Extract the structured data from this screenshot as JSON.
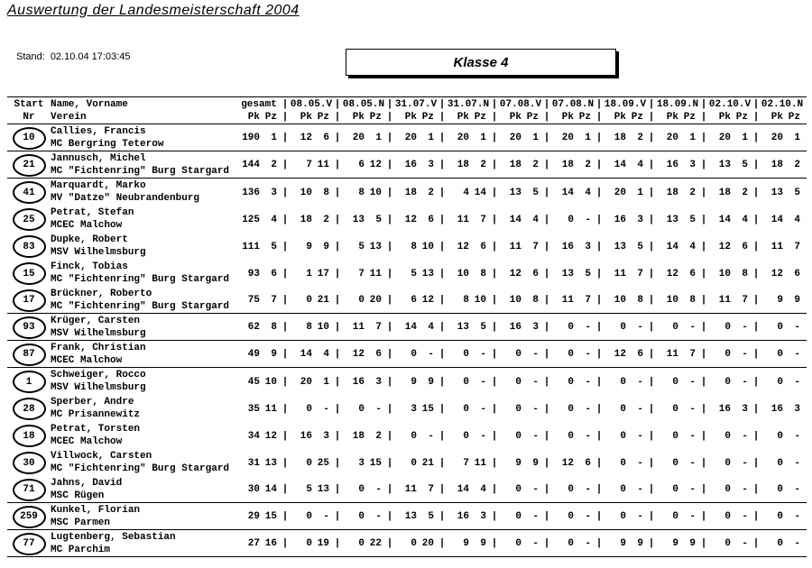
{
  "page": {
    "title": "Auswertung der Landesmeisterschaft 2004",
    "stand_label": "Stand:",
    "stand_value": "02.10.04 17:03:45",
    "klasse": "Klasse 4"
  },
  "table": {
    "divider": "|",
    "header": {
      "col_start_line1": "Start",
      "col_start_line2": "Nr",
      "col_name_line1": "Name, Vorname",
      "col_name_line2": "Verein",
      "gesamt_label": "gesamt",
      "pk_label": "Pk",
      "pz_label": "Pz",
      "dates": [
        "08.05.V",
        "08.05.N",
        "31.07.V",
        "31.07.N",
        "07.08.V",
        "07.08.N",
        "18.09.V",
        "18.09.N",
        "02.10.V",
        "02.10.N"
      ]
    },
    "rows": [
      {
        "start_nr": "10",
        "name": "Callies, Francis",
        "verein": "MC Bergring Teterow",
        "gesamt": [
          "190",
          "1"
        ],
        "results": [
          [
            "12",
            "6"
          ],
          [
            "20",
            "1"
          ],
          [
            "20",
            "1"
          ],
          [
            "20",
            "1"
          ],
          [
            "20",
            "1"
          ],
          [
            "20",
            "1"
          ],
          [
            "18",
            "2"
          ],
          [
            "20",
            "1"
          ],
          [
            "20",
            "1"
          ],
          [
            "20",
            "1"
          ]
        ],
        "sep": true
      },
      {
        "start_nr": "21",
        "name": "Jannusch, Michel",
        "verein": "MC \"Fichtenring\" Burg Stargard",
        "gesamt": [
          "144",
          "2"
        ],
        "results": [
          [
            "7",
            "11"
          ],
          [
            "6",
            "12"
          ],
          [
            "16",
            "3"
          ],
          [
            "18",
            "2"
          ],
          [
            "18",
            "2"
          ],
          [
            "18",
            "2"
          ],
          [
            "14",
            "4"
          ],
          [
            "16",
            "3"
          ],
          [
            "13",
            "5"
          ],
          [
            "18",
            "2"
          ]
        ],
        "sep": true
      },
      {
        "start_nr": "41",
        "name": "Marquardt, Marko",
        "verein": "MV \"Datze\" Neubrandenburg",
        "gesamt": [
          "136",
          "3"
        ],
        "results": [
          [
            "10",
            "8"
          ],
          [
            "8",
            "10"
          ],
          [
            "18",
            "2"
          ],
          [
            "4",
            "14"
          ],
          [
            "13",
            "5"
          ],
          [
            "14",
            "4"
          ],
          [
            "20",
            "1"
          ],
          [
            "18",
            "2"
          ],
          [
            "18",
            "2"
          ],
          [
            "13",
            "5"
          ]
        ],
        "sep": false
      },
      {
        "start_nr": "25",
        "name": "Petrat, Stefan",
        "verein": "MCEC Malchow",
        "gesamt": [
          "125",
          "4"
        ],
        "results": [
          [
            "18",
            "2"
          ],
          [
            "13",
            "5"
          ],
          [
            "12",
            "6"
          ],
          [
            "11",
            "7"
          ],
          [
            "14",
            "4"
          ],
          [
            "0",
            "-"
          ],
          [
            "16",
            "3"
          ],
          [
            "13",
            "5"
          ],
          [
            "14",
            "4"
          ],
          [
            "14",
            "4"
          ]
        ],
        "sep": false
      },
      {
        "start_nr": "83",
        "name": "Dupke, Robert",
        "verein": "MSV Wilhelmsburg",
        "gesamt": [
          "111",
          "5"
        ],
        "results": [
          [
            "9",
            "9"
          ],
          [
            "5",
            "13"
          ],
          [
            "8",
            "10"
          ],
          [
            "12",
            "6"
          ],
          [
            "11",
            "7"
          ],
          [
            "16",
            "3"
          ],
          [
            "13",
            "5"
          ],
          [
            "14",
            "4"
          ],
          [
            "12",
            "6"
          ],
          [
            "11",
            "7"
          ]
        ],
        "sep": false
      },
      {
        "start_nr": "15",
        "name": "Finck, Tobias",
        "verein": "MC \"Fichtenring\" Burg Stargard",
        "gesamt": [
          "93",
          "6"
        ],
        "results": [
          [
            "1",
            "17"
          ],
          [
            "7",
            "11"
          ],
          [
            "5",
            "13"
          ],
          [
            "10",
            "8"
          ],
          [
            "12",
            "6"
          ],
          [
            "13",
            "5"
          ],
          [
            "11",
            "7"
          ],
          [
            "12",
            "6"
          ],
          [
            "10",
            "8"
          ],
          [
            "12",
            "6"
          ]
        ],
        "sep": false
      },
      {
        "start_nr": "17",
        "name": "Brückner, Roberto",
        "verein": "MC \"Fichtenring\" Burg Stargard",
        "gesamt": [
          "75",
          "7"
        ],
        "results": [
          [
            "0",
            "21"
          ],
          [
            "0",
            "20"
          ],
          [
            "6",
            "12"
          ],
          [
            "8",
            "10"
          ],
          [
            "10",
            "8"
          ],
          [
            "11",
            "7"
          ],
          [
            "10",
            "8"
          ],
          [
            "10",
            "8"
          ],
          [
            "11",
            "7"
          ],
          [
            "9",
            "9"
          ]
        ],
        "sep": true
      },
      {
        "start_nr": "93",
        "name": "Krüger, Carsten",
        "verein": "MSV Wilhelmsburg",
        "gesamt": [
          "62",
          "8"
        ],
        "results": [
          [
            "8",
            "10"
          ],
          [
            "11",
            "7"
          ],
          [
            "14",
            "4"
          ],
          [
            "13",
            "5"
          ],
          [
            "16",
            "3"
          ],
          [
            "0",
            "-"
          ],
          [
            "0",
            "-"
          ],
          [
            "0",
            "-"
          ],
          [
            "0",
            "-"
          ],
          [
            "0",
            "-"
          ]
        ],
        "sep": true
      },
      {
        "start_nr": "87",
        "name": "Frank, Christian",
        "verein": "MCEC Malchow",
        "gesamt": [
          "49",
          "9"
        ],
        "results": [
          [
            "14",
            "4"
          ],
          [
            "12",
            "6"
          ],
          [
            "0",
            "-"
          ],
          [
            "0",
            "-"
          ],
          [
            "0",
            "-"
          ],
          [
            "0",
            "-"
          ],
          [
            "12",
            "6"
          ],
          [
            "11",
            "7"
          ],
          [
            "0",
            "-"
          ],
          [
            "0",
            "-"
          ]
        ],
        "sep": true
      },
      {
        "start_nr": "1",
        "name": "Schweiger, Rocco",
        "verein": "MSV Wilhelmsburg",
        "gesamt": [
          "45",
          "10"
        ],
        "results": [
          [
            "20",
            "1"
          ],
          [
            "16",
            "3"
          ],
          [
            "9",
            "9"
          ],
          [
            "0",
            "-"
          ],
          [
            "0",
            "-"
          ],
          [
            "0",
            "-"
          ],
          [
            "0",
            "-"
          ],
          [
            "0",
            "-"
          ],
          [
            "0",
            "-"
          ],
          [
            "0",
            "-"
          ]
        ],
        "sep": false
      },
      {
        "start_nr": "28",
        "name": "Sperber, Andre",
        "verein": "MC Prisannewitz",
        "gesamt": [
          "35",
          "11"
        ],
        "results": [
          [
            "0",
            "-"
          ],
          [
            "0",
            "-"
          ],
          [
            "3",
            "15"
          ],
          [
            "0",
            "-"
          ],
          [
            "0",
            "-"
          ],
          [
            "0",
            "-"
          ],
          [
            "0",
            "-"
          ],
          [
            "0",
            "-"
          ],
          [
            "16",
            "3"
          ],
          [
            "16",
            "3"
          ]
        ],
        "sep": false
      },
      {
        "start_nr": "18",
        "name": "Petrat, Torsten",
        "verein": "MCEC Malchow",
        "gesamt": [
          "34",
          "12"
        ],
        "results": [
          [
            "16",
            "3"
          ],
          [
            "18",
            "2"
          ],
          [
            "0",
            "-"
          ],
          [
            "0",
            "-"
          ],
          [
            "0",
            "-"
          ],
          [
            "0",
            "-"
          ],
          [
            "0",
            "-"
          ],
          [
            "0",
            "-"
          ],
          [
            "0",
            "-"
          ],
          [
            "0",
            "-"
          ]
        ],
        "sep": false
      },
      {
        "start_nr": "30",
        "name": "Villwock, Carsten",
        "verein": "MC \"Fichtenring\" Burg Stargard",
        "gesamt": [
          "31",
          "13"
        ],
        "results": [
          [
            "0",
            "25"
          ],
          [
            "3",
            "15"
          ],
          [
            "0",
            "21"
          ],
          [
            "7",
            "11"
          ],
          [
            "9",
            "9"
          ],
          [
            "12",
            "6"
          ],
          [
            "0",
            "-"
          ],
          [
            "0",
            "-"
          ],
          [
            "0",
            "-"
          ],
          [
            "0",
            "-"
          ]
        ],
        "sep": false
      },
      {
        "start_nr": "71",
        "name": "Jahns, David",
        "verein": "MSC Rügen",
        "gesamt": [
          "30",
          "14"
        ],
        "results": [
          [
            "5",
            "13"
          ],
          [
            "0",
            "-"
          ],
          [
            "11",
            "7"
          ],
          [
            "14",
            "4"
          ],
          [
            "0",
            "-"
          ],
          [
            "0",
            "-"
          ],
          [
            "0",
            "-"
          ],
          [
            "0",
            "-"
          ],
          [
            "0",
            "-"
          ],
          [
            "0",
            "-"
          ]
        ],
        "sep": true
      },
      {
        "start_nr": "259",
        "name": "Kunkel, Florian",
        "verein": "MSC Parmen",
        "gesamt": [
          "29",
          "15"
        ],
        "results": [
          [
            "0",
            "-"
          ],
          [
            "0",
            "-"
          ],
          [
            "13",
            "5"
          ],
          [
            "16",
            "3"
          ],
          [
            "0",
            "-"
          ],
          [
            "0",
            "-"
          ],
          [
            "0",
            "-"
          ],
          [
            "0",
            "-"
          ],
          [
            "0",
            "-"
          ],
          [
            "0",
            "-"
          ]
        ],
        "sep": true
      },
      {
        "start_nr": "77",
        "name": "Lugtenberg, Sebastian",
        "verein": "MC Parchim",
        "gesamt": [
          "27",
          "16"
        ],
        "results": [
          [
            "0",
            "19"
          ],
          [
            "0",
            "22"
          ],
          [
            "0",
            "20"
          ],
          [
            "9",
            "9"
          ],
          [
            "0",
            "-"
          ],
          [
            "0",
            "-"
          ],
          [
            "9",
            "9"
          ],
          [
            "9",
            "9"
          ],
          [
            "0",
            "-"
          ],
          [
            "0",
            "-"
          ]
        ],
        "sep": true
      }
    ]
  }
}
